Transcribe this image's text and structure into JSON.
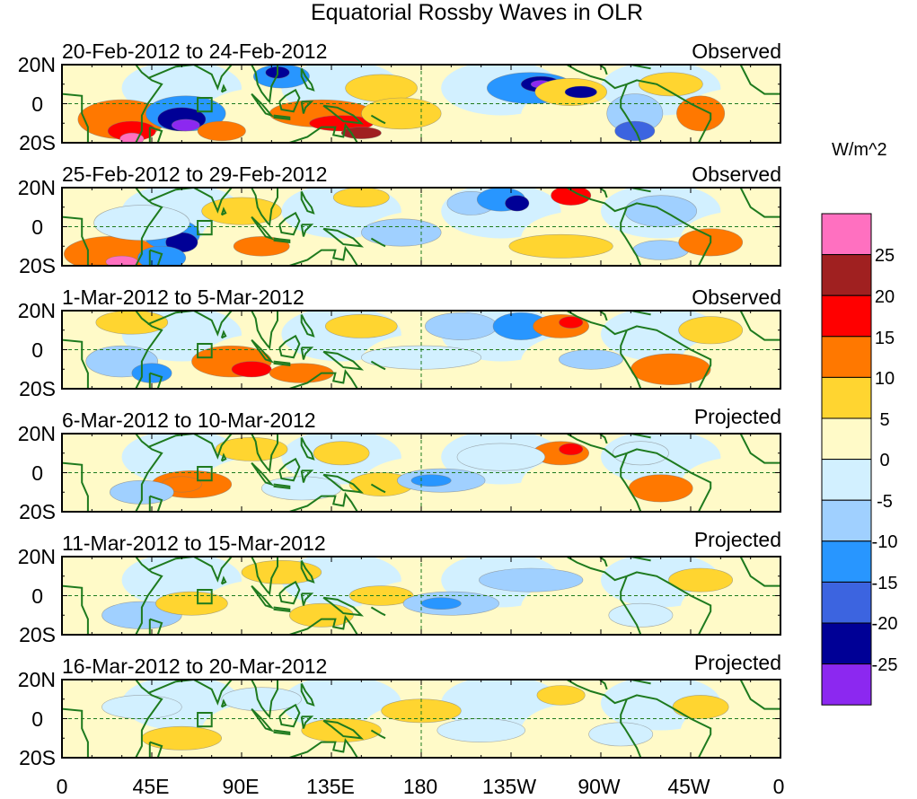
{
  "title": "Equatorial Rossby Waves in OLR",
  "units": "W/m^2",
  "lat_labels": [
    "20N",
    "0",
    "20S"
  ],
  "lon_labels": [
    "0",
    "45E",
    "90E",
    "135E",
    "180",
    "135W",
    "90W",
    "45W",
    "0"
  ],
  "panels": [
    {
      "dates": "20-Feb-2012 to 24-Feb-2012",
      "status": "Observed"
    },
    {
      "dates": "25-Feb-2012 to 29-Feb-2012",
      "status": "Observed"
    },
    {
      "dates": "1-Mar-2012 to 5-Mar-2012",
      "status": "Observed"
    },
    {
      "dates": "6-Mar-2012 to 10-Mar-2012",
      "status": "Projected"
    },
    {
      "dates": "11-Mar-2012 to 15-Mar-2012",
      "status": "Projected"
    },
    {
      "dates": "16-Mar-2012 to 20-Mar-2012",
      "status": "Projected"
    }
  ],
  "colorbar": {
    "labels": [
      "25",
      "20",
      "15",
      "10",
      "5",
      "0",
      "-5",
      "-10",
      "-15",
      "-20",
      "-25"
    ],
    "colors": [
      "#ff70c0",
      "#a02020",
      "#ff0000",
      "#ff7800",
      "#ffd530",
      "#fffac8",
      "#d2f0ff",
      "#a0d0ff",
      "#2896ff",
      "#3c64e0",
      "#000096",
      "#8c28f0"
    ]
  },
  "colors": {
    "coast": "#1e7a1e",
    "equator": "#1e7a1e",
    "frame": "#000000"
  }
}
